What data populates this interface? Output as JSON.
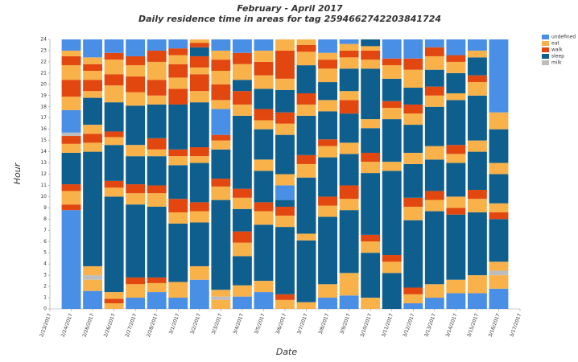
{
  "chart_data": {
    "type": "stacked-segments",
    "title": "February - April 2017",
    "subtitle": "Daily residence time in areas for tag 2594662742203841724",
    "x_label": "Date",
    "y_label": "Hour",
    "ylim": [
      0,
      24
    ],
    "yticks": [
      0,
      1,
      2,
      3,
      4,
      5,
      6,
      7,
      8,
      9,
      10,
      11,
      12,
      13,
      14,
      15,
      16,
      17,
      18,
      19,
      20,
      21,
      22,
      23,
      24
    ],
    "grid": false,
    "legend": "top-right",
    "series": [
      {
        "name": "undefined",
        "color": "#4a8fe6"
      },
      {
        "name": "eat",
        "color": "#f9b24a"
      },
      {
        "name": "walk",
        "color": "#e2470f"
      },
      {
        "name": "sleep",
        "color": "#0f5f8e"
      },
      {
        "name": "milk",
        "color": "#bdbdbd"
      }
    ],
    "categories": [
      "2/23/2017",
      "2/24/2017",
      "2/26/2017",
      "2/26/2017",
      "2/27/2017",
      "2/28/2017",
      "3/1/2017",
      "3/2/2017",
      "3/3/2017",
      "3/4/2017",
      "3/5/2017",
      "3/6/2017",
      "3/7/2017",
      "3/8/2017",
      "3/9/2017",
      "3/10/2017",
      "3/11/2017",
      "3/12/2017",
      "3/13/2017",
      "3/14/2017",
      "3/15/2017",
      "3/16/2017",
      "3/17/2017"
    ],
    "days": [
      null,
      [
        [
          0,
          8.8
        ],
        [
          2,
          0.5
        ],
        [
          1,
          1.2
        ],
        [
          2,
          0.6
        ],
        [
          3,
          2.8
        ],
        [
          1,
          0.8
        ],
        [
          2,
          0.7
        ],
        [
          4,
          0.3
        ],
        [
          0,
          2.0
        ],
        [
          1,
          1.2
        ],
        [
          2,
          1.5
        ],
        [
          1,
          1.3
        ],
        [
          2,
          0.8
        ],
        [
          1,
          0.5
        ],
        [
          0,
          1.0
        ]
      ],
      [
        [
          0,
          1.6
        ],
        [
          1,
          1.0
        ],
        [
          4,
          0.4
        ],
        [
          1,
          0.8
        ],
        [
          3,
          10.2
        ],
        [
          1,
          0.8
        ],
        [
          2,
          0.8
        ],
        [
          1,
          0.8
        ],
        [
          3,
          2.4
        ],
        [
          1,
          0.6
        ],
        [
          2,
          1.0
        ],
        [
          1,
          0.8
        ],
        [
          2,
          0.6
        ],
        [
          1,
          0.6
        ],
        [
          0,
          1.6
        ]
      ],
      [
        [
          1,
          0.5
        ],
        [
          2,
          0.4
        ],
        [
          1,
          0.6
        ],
        [
          3,
          8.5
        ],
        [
          1,
          0.8
        ],
        [
          2,
          0.6
        ],
        [
          3,
          3.2
        ],
        [
          1,
          0.7
        ],
        [
          2,
          0.5
        ],
        [
          3,
          2.6
        ],
        [
          1,
          1.5
        ],
        [
          2,
          1.0
        ],
        [
          1,
          1.3
        ],
        [
          2,
          0.6
        ],
        [
          0,
          1.2
        ]
      ],
      [
        [
          0,
          1.0
        ],
        [
          1,
          1.2
        ],
        [
          2,
          0.6
        ],
        [
          3,
          6.5
        ],
        [
          1,
          1.0
        ],
        [
          2,
          0.8
        ],
        [
          3,
          2.5
        ],
        [
          1,
          1.0
        ],
        [
          3,
          3.5
        ],
        [
          1,
          1.2
        ],
        [
          2,
          1.4
        ],
        [
          1,
          1.0
        ],
        [
          2,
          0.8
        ],
        [
          0,
          1.5
        ]
      ],
      [
        [
          0,
          1.5
        ],
        [
          1,
          0.8
        ],
        [
          2,
          0.5
        ],
        [
          3,
          6.3
        ],
        [
          1,
          1.2
        ],
        [
          2,
          0.7
        ],
        [
          3,
          2.6
        ],
        [
          1,
          0.6
        ],
        [
          2,
          1.0
        ],
        [
          3,
          3.0
        ],
        [
          1,
          0.8
        ],
        [
          2,
          1.4
        ],
        [
          1,
          1.6
        ],
        [
          2,
          1.0
        ],
        [
          0,
          1.0
        ]
      ],
      [
        [
          0,
          1.0
        ],
        [
          1,
          1.4
        ],
        [
          3,
          5.2
        ],
        [
          1,
          1.0
        ],
        [
          2,
          1.2
        ],
        [
          3,
          3.0
        ],
        [
          1,
          0.8
        ],
        [
          2,
          0.6
        ],
        [
          3,
          4.0
        ],
        [
          2,
          1.4
        ],
        [
          1,
          1.0
        ],
        [
          2,
          1.2
        ],
        [
          1,
          0.8
        ],
        [
          2,
          0.6
        ],
        [
          0,
          0.8
        ]
      ],
      [
        [
          0,
          2.6
        ],
        [
          1,
          1.2
        ],
        [
          3,
          3.9
        ],
        [
          1,
          1.0
        ],
        [
          2,
          0.8
        ],
        [
          3,
          3.5
        ],
        [
          1,
          0.6
        ],
        [
          2,
          0.8
        ],
        [
          3,
          4.0
        ],
        [
          1,
          1.0
        ],
        [
          2,
          1.5
        ],
        [
          1,
          0.6
        ],
        [
          2,
          1.0
        ],
        [
          3,
          0.8
        ],
        [
          2,
          0.4
        ],
        [
          1,
          0.3
        ]
      ],
      [
        [
          1,
          0.8
        ],
        [
          4,
          0.3
        ],
        [
          1,
          0.6
        ],
        [
          3,
          8.0
        ],
        [
          1,
          1.2
        ],
        [
          2,
          0.7
        ],
        [
          3,
          2.6
        ],
        [
          1,
          0.8
        ],
        [
          2,
          0.5
        ],
        [
          0,
          2.3
        ],
        [
          1,
          0.8
        ],
        [
          2,
          1.4
        ],
        [
          1,
          1.2
        ],
        [
          2,
          1.0
        ],
        [
          1,
          0.8
        ],
        [
          0,
          1.0
        ]
      ],
      [
        [
          0,
          1.1
        ],
        [
          1,
          1.0
        ],
        [
          3,
          2.6
        ],
        [
          1,
          1.2
        ],
        [
          2,
          1.0
        ],
        [
          3,
          2.0
        ],
        [
          1,
          1.0
        ],
        [
          2,
          0.8
        ],
        [
          3,
          6.5
        ],
        [
          1,
          1.0
        ],
        [
          2,
          1.2
        ],
        [
          3,
          1.0
        ],
        [
          1,
          1.4
        ],
        [
          2,
          1.0
        ],
        [
          0,
          1.2
        ]
      ],
      [
        [
          0,
          1.5
        ],
        [
          1,
          1.0
        ],
        [
          3,
          5.0
        ],
        [
          1,
          1.2
        ],
        [
          2,
          0.8
        ],
        [
          3,
          2.8
        ],
        [
          1,
          1.0
        ],
        [
          3,
          2.7
        ],
        [
          1,
          0.8
        ],
        [
          2,
          1.0
        ],
        [
          3,
          1.8
        ],
        [
          1,
          1.2
        ],
        [
          2,
          1.2
        ],
        [
          1,
          1.0
        ],
        [
          0,
          1.0
        ]
      ],
      [
        [
          1,
          0.8
        ],
        [
          2,
          0.5
        ],
        [
          3,
          6.0
        ],
        [
          1,
          1.0
        ],
        [
          2,
          0.8
        ],
        [
          3,
          0.6
        ],
        [
          0,
          1.3
        ],
        [
          1,
          1.0
        ],
        [
          3,
          3.5
        ],
        [
          1,
          1.0
        ],
        [
          2,
          1.0
        ],
        [
          3,
          2.0
        ],
        [
          1,
          1.0
        ],
        [
          2,
          2.5
        ],
        [
          1,
          1.0
        ]
      ],
      [
        [
          1,
          0.6
        ],
        [
          3,
          5.5
        ],
        [
          1,
          0.6
        ],
        [
          3,
          5.0
        ],
        [
          1,
          1.2
        ],
        [
          2,
          0.8
        ],
        [
          3,
          3.5
        ],
        [
          1,
          1.0
        ],
        [
          2,
          1.0
        ],
        [
          3,
          2.5
        ],
        [
          1,
          1.2
        ],
        [
          2,
          0.6
        ],
        [
          1,
          0.5
        ]
      ],
      [
        [
          0,
          1.0
        ],
        [
          1,
          1.2
        ],
        [
          3,
          6.0
        ],
        [
          1,
          1.0
        ],
        [
          2,
          0.8
        ],
        [
          3,
          3.5
        ],
        [
          1,
          1.0
        ],
        [
          2,
          0.6
        ],
        [
          3,
          2.5
        ],
        [
          1,
          1.0
        ],
        [
          3,
          1.6
        ],
        [
          1,
          1.2
        ],
        [
          2,
          0.8
        ],
        [
          1,
          0.6
        ],
        [
          0,
          1.2
        ]
      ],
      [
        [
          0,
          1.2
        ],
        [
          1,
          2.0
        ],
        [
          3,
          5.6
        ],
        [
          1,
          1.0
        ],
        [
          2,
          1.2
        ],
        [
          3,
          2.8
        ],
        [
          1,
          1.0
        ],
        [
          3,
          2.6
        ],
        [
          2,
          1.2
        ],
        [
          1,
          0.8
        ],
        [
          3,
          2.0
        ],
        [
          1,
          1.0
        ],
        [
          2,
          0.6
        ],
        [
          1,
          0.6
        ],
        [
          0,
          0.4
        ]
      ],
      [
        [
          1,
          1.0
        ],
        [
          3,
          4.0
        ],
        [
          1,
          1.0
        ],
        [
          2,
          0.6
        ],
        [
          3,
          5.5
        ],
        [
          1,
          1.0
        ],
        [
          2,
          0.8
        ],
        [
          3,
          2.2
        ],
        [
          1,
          0.8
        ],
        [
          3,
          4.5
        ],
        [
          1,
          0.8
        ],
        [
          2,
          0.8
        ],
        [
          1,
          0.4
        ],
        [
          3,
          0.6
        ]
      ],
      [
        [
          3,
          3.2
        ],
        [
          1,
          1.0
        ],
        [
          2,
          0.6
        ],
        [
          3,
          7.5
        ],
        [
          1,
          0.8
        ],
        [
          3,
          3.8
        ],
        [
          1,
          1.0
        ],
        [
          2,
          0.6
        ],
        [
          3,
          2.0
        ],
        [
          1,
          1.2
        ],
        [
          2,
          0.6
        ],
        [
          0,
          1.7
        ]
      ],
      [
        [
          0,
          0.5
        ],
        [
          1,
          0.8
        ],
        [
          2,
          0.6
        ],
        [
          3,
          6.0
        ],
        [
          1,
          1.2
        ],
        [
          2,
          0.8
        ],
        [
          3,
          3.0
        ],
        [
          1,
          1.0
        ],
        [
          3,
          2.5
        ],
        [
          1,
          1.0
        ],
        [
          2,
          0.8
        ],
        [
          3,
          1.5
        ],
        [
          1,
          1.6
        ],
        [
          2,
          1.0
        ],
        [
          0,
          1.7
        ]
      ],
      [
        [
          0,
          1.0
        ],
        [
          1,
          1.2
        ],
        [
          3,
          6.5
        ],
        [
          1,
          1.0
        ],
        [
          2,
          0.8
        ],
        [
          3,
          2.8
        ],
        [
          1,
          1.2
        ],
        [
          3,
          3.5
        ],
        [
          1,
          1.0
        ],
        [
          2,
          0.8
        ],
        [
          3,
          1.5
        ],
        [
          1,
          1.2
        ],
        [
          2,
          0.8
        ],
        [
          0,
          0.7
        ]
      ],
      [
        [
          0,
          1.4
        ],
        [
          1,
          1.2
        ],
        [
          3,
          5.8
        ],
        [
          2,
          0.6
        ],
        [
          1,
          1.0
        ],
        [
          3,
          3.0
        ],
        [
          1,
          0.8
        ],
        [
          2,
          0.8
        ],
        [
          3,
          4.0
        ],
        [
          1,
          0.6
        ],
        [
          3,
          1.8
        ],
        [
          1,
          1.0
        ],
        [
          2,
          0.6
        ],
        [
          0,
          1.4
        ]
      ],
      [
        [
          0,
          1.4
        ],
        [
          1,
          1.6
        ],
        [
          3,
          5.6
        ],
        [
          1,
          1.2
        ],
        [
          2,
          0.8
        ],
        [
          3,
          3.4
        ],
        [
          1,
          1.0
        ],
        [
          3,
          4.0
        ],
        [
          1,
          1.2
        ],
        [
          2,
          0.6
        ],
        [
          3,
          1.6
        ],
        [
          1,
          0.6
        ],
        [
          0,
          1.0
        ]
      ],
      [
        [
          0,
          1.8
        ],
        [
          1,
          1.2
        ],
        [
          4,
          0.4
        ],
        [
          1,
          0.8
        ],
        [
          3,
          3.8
        ],
        [
          2,
          0.6
        ],
        [
          1,
          0.8
        ],
        [
          3,
          2.6
        ],
        [
          1,
          1.0
        ],
        [
          3,
          3.0
        ],
        [
          1,
          1.5
        ],
        [
          0,
          6.5
        ]
      ],
      null
    ]
  }
}
